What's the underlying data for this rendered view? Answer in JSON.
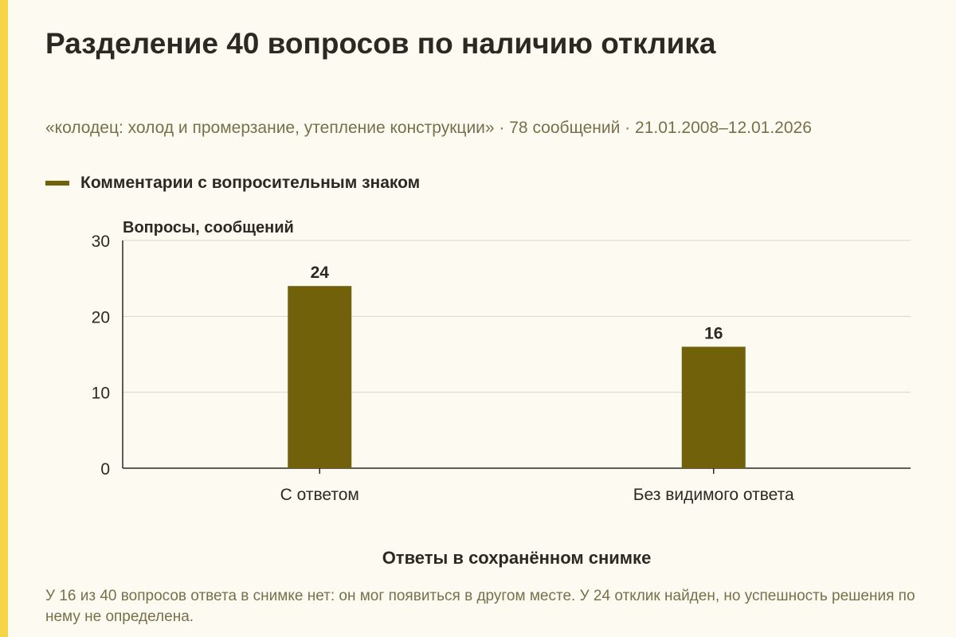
{
  "title": "Разделение 40 вопросов по наличию отклика",
  "subtitle": "«колодец: холод и промерзание, утепление конструкции» · 78 сообщений · 21.01.2008–12.01.2026",
  "footnote": "У 16 из 40 вопросов ответа в снимке нет: он мог появиться в другом месте. У 24 отклик найден, но успешность решения по нему не определена.",
  "colors": {
    "accent_strip": "#f5d547",
    "bar": "#72610b",
    "background": "#fdfbf1",
    "grid": "#d9d6c8",
    "axis": "#2a2a22"
  },
  "chart_data": {
    "type": "bar",
    "categories": [
      "С ответом",
      "Без видимого ответа"
    ],
    "series": [
      {
        "name": "Комментарии с вопросительным знаком",
        "values": [
          24,
          16
        ]
      }
    ],
    "data_labels": [
      "24",
      "16"
    ],
    "ylabel": "Вопросы, сообщений",
    "xlabel": "Ответы в сохранённом снимке",
    "ylim": [
      0,
      30
    ],
    "yticks": [
      0,
      10,
      20,
      30
    ],
    "grid": true,
    "legend_position": "top-left"
  }
}
